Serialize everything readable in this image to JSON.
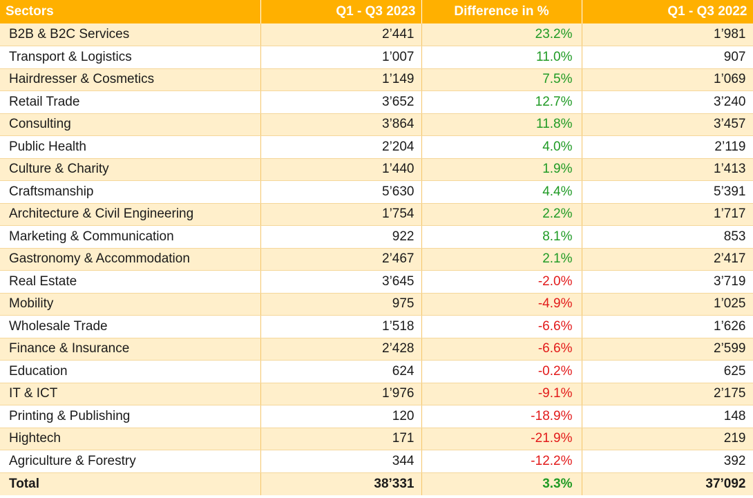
{
  "colors": {
    "header_bg": "#FFB000",
    "row_shade": "#FFEFCB",
    "positive": "#1f9a24",
    "negative": "#e21a1a"
  },
  "chart_data": {
    "type": "table",
    "columns": [
      "Sectors",
      "Q1 - Q3 2023",
      "Difference in %",
      "Q1 - Q3 2022"
    ],
    "rows": [
      {
        "sector": "B2B & B2C Services",
        "y2023": "2’441",
        "diff": "23.2%",
        "y2022": "1’981",
        "sign": "pos"
      },
      {
        "sector": "Transport & Logistics",
        "y2023": "1’007",
        "diff": "11.0%",
        "y2022": "907",
        "sign": "pos"
      },
      {
        "sector": "Hairdresser & Cosmetics",
        "y2023": "1’149",
        "diff": "7.5%",
        "y2022": "1’069",
        "sign": "pos"
      },
      {
        "sector": "Retail Trade",
        "y2023": "3’652",
        "diff": "12.7%",
        "y2022": "3’240",
        "sign": "pos"
      },
      {
        "sector": "Consulting",
        "y2023": "3’864",
        "diff": "11.8%",
        "y2022": "3’457",
        "sign": "pos"
      },
      {
        "sector": "Public Health",
        "y2023": "2’204",
        "diff": "4.0%",
        "y2022": "2’119",
        "sign": "pos"
      },
      {
        "sector": "Culture & Charity",
        "y2023": "1’440",
        "diff": "1.9%",
        "y2022": "1’413",
        "sign": "pos"
      },
      {
        "sector": "Craftsmanship",
        "y2023": "5’630",
        "diff": "4.4%",
        "y2022": "5’391",
        "sign": "pos"
      },
      {
        "sector": "Architecture & Civil Engineering",
        "y2023": "1’754",
        "diff": "2.2%",
        "y2022": "1’717",
        "sign": "pos"
      },
      {
        "sector": "Marketing & Communication",
        "y2023": "922",
        "diff": "8.1%",
        "y2022": "853",
        "sign": "pos"
      },
      {
        "sector": "Gastronomy & Accommodation",
        "y2023": "2’467",
        "diff": "2.1%",
        "y2022": "2’417",
        "sign": "pos"
      },
      {
        "sector": "Real Estate",
        "y2023": "3’645",
        "diff": "-2.0%",
        "y2022": "3’719",
        "sign": "neg"
      },
      {
        "sector": "Mobility",
        "y2023": "975",
        "diff": "-4.9%",
        "y2022": "1’025",
        "sign": "neg"
      },
      {
        "sector": "Wholesale Trade",
        "y2023": "1’518",
        "diff": "-6.6%",
        "y2022": "1’626",
        "sign": "neg"
      },
      {
        "sector": "Finance & Insurance",
        "y2023": "2’428",
        "diff": "-6.6%",
        "y2022": "2’599",
        "sign": "neg"
      },
      {
        "sector": "Education",
        "y2023": "624",
        "diff": "-0.2%",
        "y2022": "625",
        "sign": "neg"
      },
      {
        "sector": "IT & ICT",
        "y2023": "1’976",
        "diff": "-9.1%",
        "y2022": "2’175",
        "sign": "neg"
      },
      {
        "sector": "Printing & Publishing",
        "y2023": "120",
        "diff": "-18.9%",
        "y2022": "148",
        "sign": "neg"
      },
      {
        "sector": "Hightech",
        "y2023": "171",
        "diff": "-21.9%",
        "y2022": "219",
        "sign": "neg"
      },
      {
        "sector": "Agriculture & Forestry",
        "y2023": "344",
        "diff": "-12.2%",
        "y2022": "392",
        "sign": "neg"
      }
    ],
    "total": {
      "sector": "Total",
      "y2023": "38’331",
      "diff": "3.3%",
      "y2022": "37’092",
      "sign": "pos"
    }
  }
}
